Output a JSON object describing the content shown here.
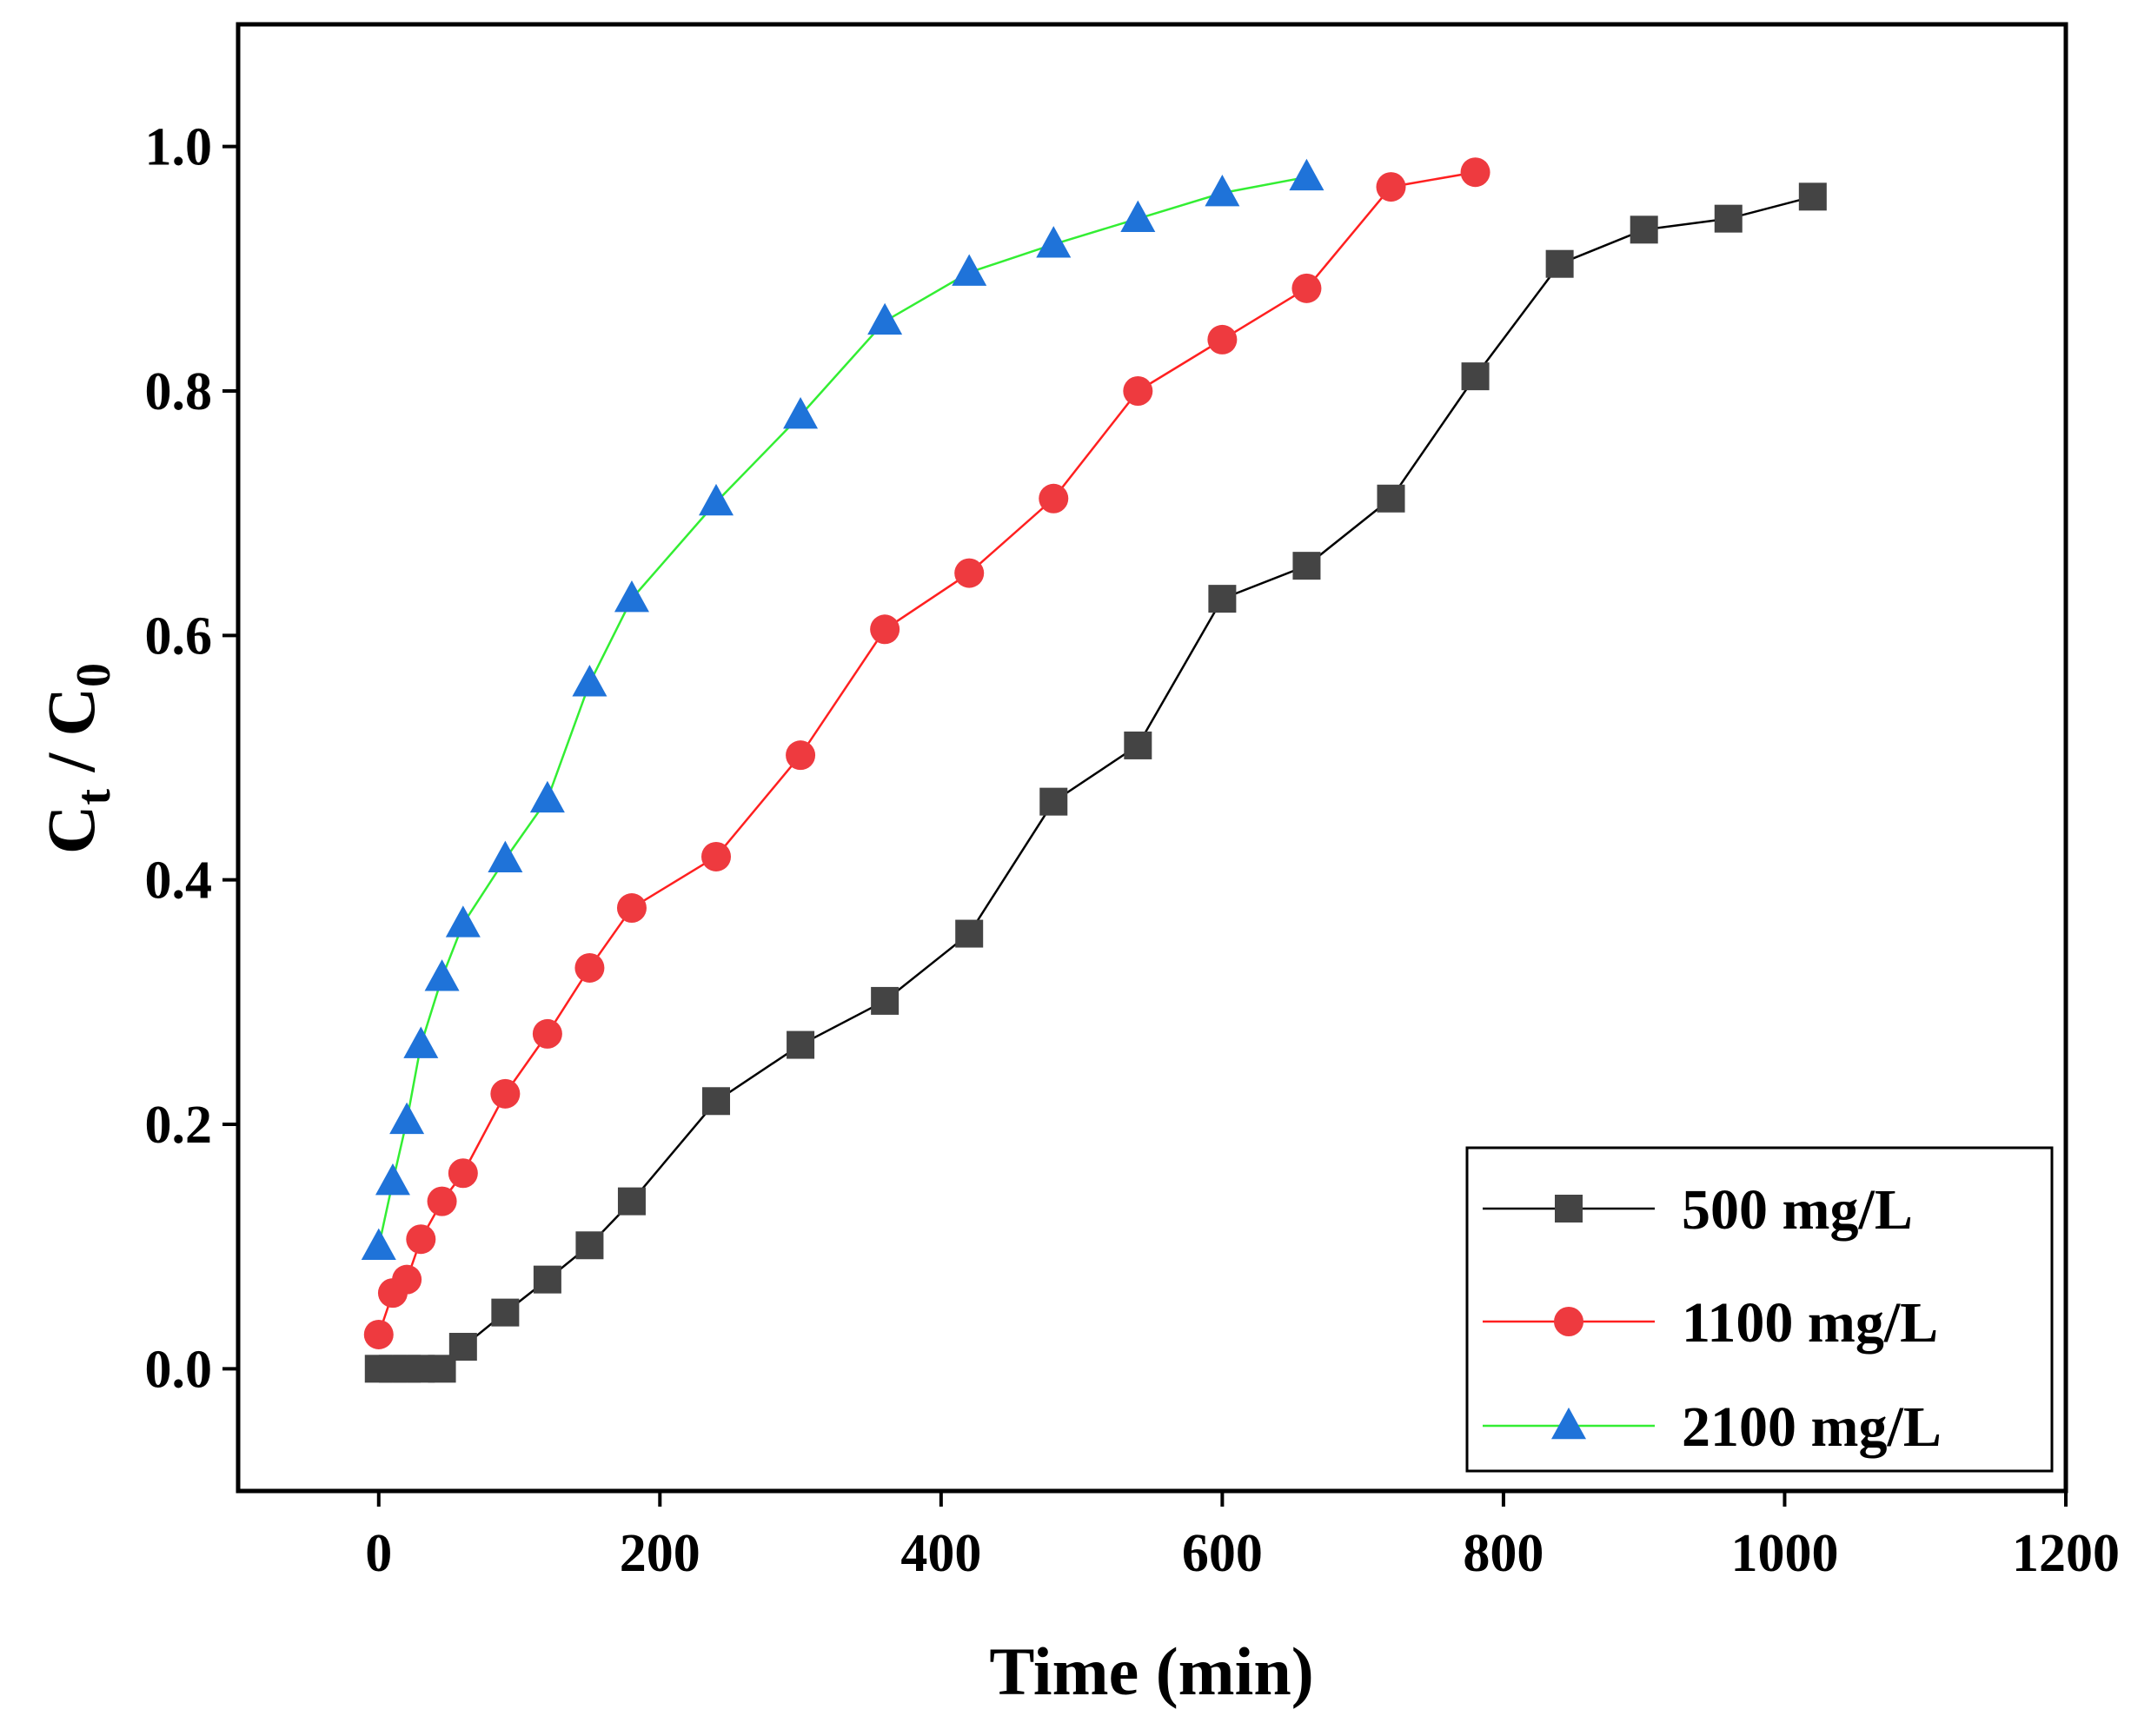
{
  "chart_data": {
    "type": "line",
    "title": "",
    "xlabel": "Time (min)",
    "ylabel": {
      "main": "C",
      "sub1": "t",
      "sep": " / C",
      "sub2": "0"
    },
    "xlim": [
      -100,
      1200
    ],
    "ylim": [
      -0.1,
      1.1
    ],
    "xticks": [
      0,
      200,
      400,
      600,
      800,
      1000,
      1200
    ],
    "xtick_labels": [
      "0",
      "200",
      "400",
      "600",
      "800",
      "1000",
      "1200"
    ],
    "yticks": [
      0.0,
      0.2,
      0.4,
      0.6,
      0.8,
      1.0
    ],
    "ytick_labels": [
      "0.0",
      "0.2",
      "0.4",
      "0.6",
      "0.8",
      "1.0"
    ],
    "grid": false,
    "legend_position": "bottom-right",
    "series": [
      {
        "name": "500 mg/L",
        "color": "#000000",
        "marker_color": "#444444",
        "marker": "square",
        "x": [
          0,
          10,
          20,
          30,
          45,
          60,
          90,
          120,
          150,
          180,
          240,
          300,
          360,
          420,
          480,
          540,
          600,
          660,
          720,
          780,
          840,
          900,
          960,
          1020
        ],
        "y": [
          0.0,
          0.0,
          0.0,
          0.0,
          0.0,
          0.018,
          0.046,
          0.073,
          0.101,
          0.137,
          0.219,
          0.265,
          0.301,
          0.356,
          0.464,
          0.51,
          0.63,
          0.657,
          0.712,
          0.812,
          0.904,
          0.932,
          0.941,
          0.959
        ]
      },
      {
        "name": "1100 mg/L",
        "color": "#ff2020",
        "marker_color": "#ee3a3f",
        "marker": "circle",
        "x": [
          0,
          10,
          20,
          30,
          45,
          60,
          90,
          120,
          150,
          180,
          240,
          300,
          360,
          420,
          480,
          540,
          600,
          660,
          720,
          780
        ],
        "y": [
          0.028,
          0.062,
          0.073,
          0.106,
          0.137,
          0.16,
          0.225,
          0.274,
          0.328,
          0.377,
          0.419,
          0.502,
          0.605,
          0.651,
          0.712,
          0.8,
          0.842,
          0.884,
          0.967,
          0.979
        ]
      },
      {
        "name": "2100 mg/L",
        "color": "#33ee33",
        "marker_color": "#1f73d9",
        "marker": "triangle",
        "x": [
          0,
          10,
          20,
          30,
          45,
          60,
          90,
          120,
          150,
          180,
          240,
          300,
          360,
          420,
          480,
          540,
          600,
          660
        ],
        "y": [
          0.1,
          0.153,
          0.203,
          0.265,
          0.32,
          0.364,
          0.417,
          0.466,
          0.561,
          0.63,
          0.709,
          0.78,
          0.857,
          0.897,
          0.92,
          0.941,
          0.962,
          0.975
        ]
      }
    ]
  }
}
